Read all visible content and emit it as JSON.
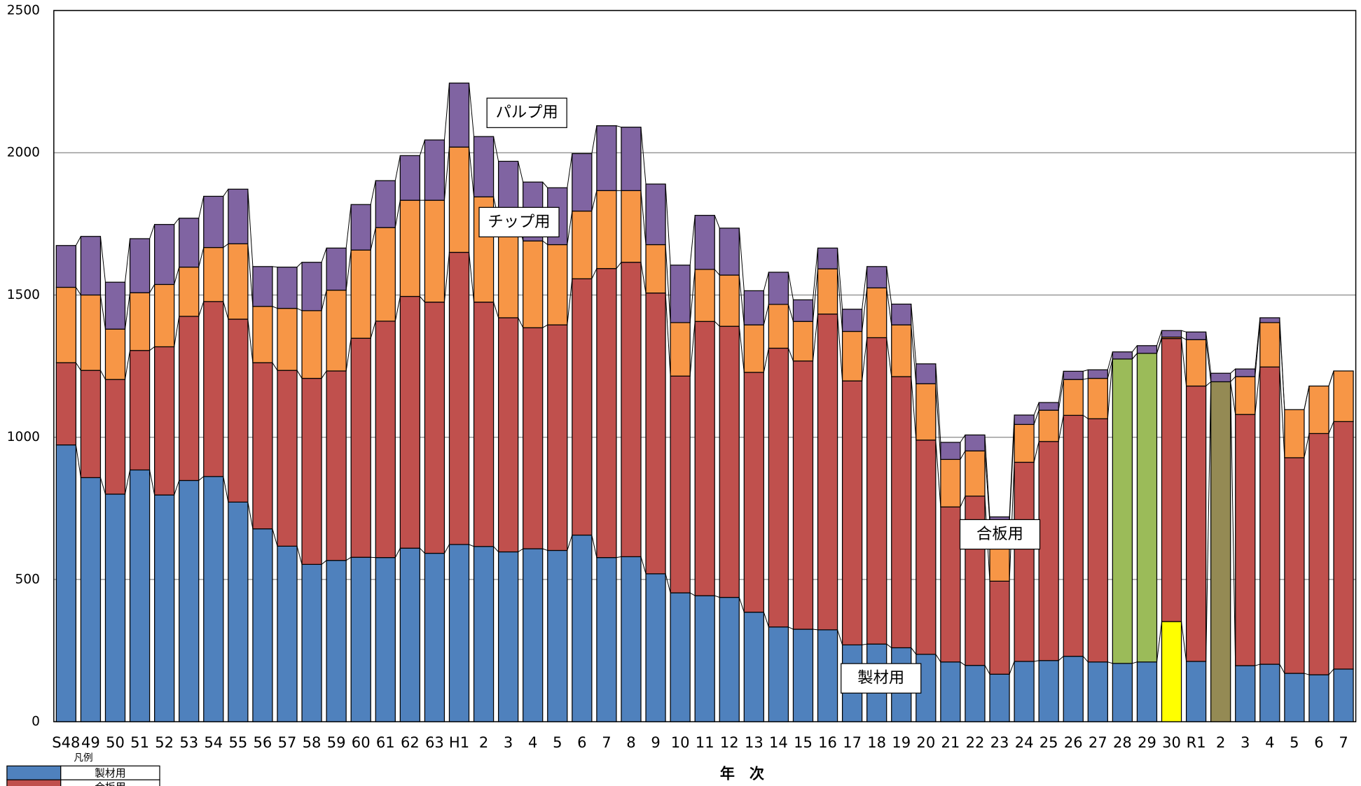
{
  "chart_data": {
    "type": "stacked-bar",
    "x_label": "年　次",
    "legend_title": "凡例",
    "categories": [
      "S48",
      "49",
      "50",
      "51",
      "52",
      "53",
      "54",
      "55",
      "56",
      "57",
      "58",
      "59",
      "60",
      "61",
      "62",
      "63",
      "H1",
      "2",
      "3",
      "4",
      "5",
      "6",
      "7",
      "8",
      "9",
      "10",
      "11",
      "12",
      "13",
      "14",
      "15",
      "16",
      "17",
      "18",
      "19",
      "20",
      "21",
      "22",
      "23",
      "24",
      "25",
      "26",
      "27",
      "28",
      "29",
      "30",
      "R1",
      "2",
      "3",
      "4",
      "5",
      "6",
      "7"
    ],
    "ylim": [
      0,
      2500
    ],
    "yticks": [
      0,
      500,
      1000,
      1500,
      2000,
      2500
    ],
    "grid": true,
    "series": [
      {
        "name": "製材用",
        "color": "#4f81bd",
        "point_colors": {
          "45": "#ffff00",
          "47": "#948a54"
        },
        "values": [
          973,
          858,
          800,
          885,
          797,
          848,
          862,
          772,
          678,
          617,
          553,
          567,
          578,
          577,
          610,
          592,
          623,
          616,
          597,
          608,
          602,
          656,
          577,
          580,
          520,
          453,
          443,
          437,
          385,
          333,
          325,
          323,
          270,
          273,
          260,
          237,
          210,
          198,
          167,
          212,
          215,
          230,
          210,
          205,
          210,
          352,
          212,
          1195,
          197,
          202,
          170,
          165,
          185
        ]
      },
      {
        "name": "合板用",
        "color": "#c0504d",
        "point_colors": {
          "43": "#9bbb59",
          "44": "#9bbb59"
        },
        "values": [
          289,
          377,
          403,
          420,
          521,
          577,
          615,
          643,
          584,
          618,
          654,
          666,
          770,
          831,
          885,
          883,
          1027,
          859,
          823,
          777,
          793,
          901,
          1016,
          1035,
          987,
          762,
          964,
          953,
          843,
          980,
          943,
          1110,
          928,
          1077,
          953,
          753,
          545,
          595,
          327,
          700,
          770,
          847,
          855,
          1070,
          1085,
          995,
          968,
          0,
          883,
          1045,
          758,
          848,
          870
        ]
      },
      {
        "name": "チップ用",
        "color": "#f79646",
        "values": [
          265,
          265,
          177,
          203,
          219,
          173,
          190,
          265,
          198,
          218,
          238,
          284,
          310,
          329,
          338,
          358,
          370,
          370,
          345,
          305,
          282,
          238,
          274,
          252,
          170,
          188,
          183,
          180,
          167,
          154,
          139,
          159,
          174,
          175,
          182,
          198,
          167,
          159,
          206,
          133,
          110,
          126,
          142,
          0,
          0,
          5,
          163,
          0,
          133,
          156,
          169,
          167,
          178
        ]
      },
      {
        "name": "パルプ用",
        "color": "#8064a2",
        "values": [
          147,
          206,
          165,
          190,
          211,
          172,
          180,
          192,
          140,
          145,
          170,
          148,
          160,
          165,
          157,
          212,
          225,
          212,
          205,
          207,
          200,
          202,
          228,
          223,
          213,
          202,
          190,
          165,
          120,
          113,
          76,
          73,
          78,
          75,
          73,
          70,
          60,
          56,
          20,
          33,
          27,
          29,
          30,
          25,
          27,
          23,
          27,
          30,
          27,
          17,
          0,
          0,
          0
        ]
      }
    ]
  }
}
